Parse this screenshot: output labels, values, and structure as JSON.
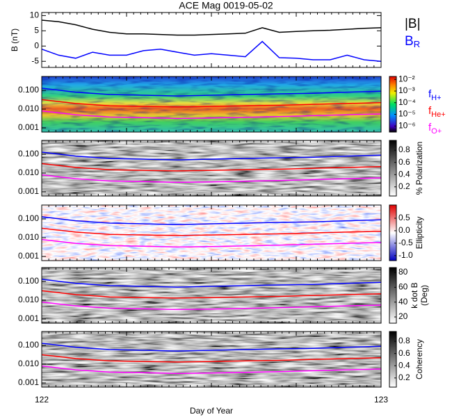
{
  "chart_data": [
    {
      "type": "line",
      "title": "ACE Mag 0019-05-02",
      "y_label": "B (nT)",
      "x": [
        122.0,
        122.05,
        122.1,
        122.15,
        122.2,
        122.25,
        122.3,
        122.35,
        122.4,
        122.45,
        122.5,
        122.55,
        122.6,
        122.65,
        122.7,
        122.75,
        122.8,
        122.85,
        122.9,
        122.95,
        123.0
      ],
      "series": [
        {
          "name": "|B|",
          "color": "#000000",
          "values": [
            8.5,
            8,
            7,
            5.5,
            4.5,
            4,
            4,
            3.8,
            3.6,
            3.6,
            3.8,
            4,
            4.2,
            6,
            4.5,
            4.8,
            5,
            5.2,
            5.5,
            5.8,
            6
          ]
        },
        {
          "name": "B",
          "subscript": "R",
          "color": "#0000ff",
          "values": [
            -1,
            -3,
            -4,
            -2,
            -3,
            -3,
            -1.5,
            -1,
            -2,
            -3,
            -2.5,
            -3,
            -3.5,
            1.5,
            -3.8,
            -4,
            -4.5,
            -4.5,
            -3,
            -4.5,
            -5
          ]
        }
      ],
      "xlim": [
        122,
        123
      ],
      "ylim": [
        -7,
        11
      ],
      "yticks": [
        10,
        5,
        0,
        -5
      ]
    },
    {
      "type": "spectrogram",
      "log_y": true,
      "x": [
        122.0,
        122.1,
        122.2,
        122.3,
        122.4,
        122.5,
        122.6,
        122.7,
        122.8,
        122.9,
        123.0
      ],
      "series": [
        {
          "name": "f",
          "subscript": "H+",
          "color": "#0000ff",
          "values": [
            0.13,
            0.08,
            0.06,
            0.055,
            0.05,
            0.055,
            0.06,
            0.065,
            0.07,
            0.08,
            0.09
          ]
        },
        {
          "name": "f",
          "subscript": "He+",
          "color": "#ff0000",
          "values": [
            0.032,
            0.02,
            0.015,
            0.014,
            0.013,
            0.014,
            0.015,
            0.016,
            0.018,
            0.02,
            0.022
          ]
        },
        {
          "name": "f",
          "subscript": "O+",
          "color": "#ff00ff",
          "values": [
            0.008,
            0.005,
            0.0038,
            0.0035,
            0.0032,
            0.0034,
            0.0037,
            0.004,
            0.0045,
            0.005,
            0.0055
          ]
        }
      ],
      "xlim": [
        122,
        123
      ],
      "ylim": [
        0.0006,
        0.55
      ],
      "yticks": [
        {
          "value": 0.1,
          "label": "0.100"
        },
        {
          "value": 0.01,
          "label": "0.010"
        },
        {
          "value": 0.001,
          "label": "0.001"
        }
      ],
      "colorbar": {
        "colormap": "rainbow",
        "log": true,
        "lim": [
          3e-07,
          0.018
        ],
        "ticks": [
          {
            "value": 0.01,
            "label": "10⁻²"
          },
          {
            "value": 0.001,
            "label": "10⁻³"
          },
          {
            "value": 0.0001,
            "label": "10⁻⁴"
          },
          {
            "value": 1e-05,
            "label": "10⁻⁵"
          },
          {
            "value": 1e-06,
            "label": "10⁻⁶"
          }
        ]
      }
    },
    {
      "type": "spectrogram",
      "log_y": true,
      "x": [
        122.0,
        122.1,
        122.2,
        122.3,
        122.4,
        122.5,
        122.6,
        122.7,
        122.8,
        122.9,
        123.0
      ],
      "series": [
        {
          "color": "#0000ff",
          "values": [
            0.13,
            0.08,
            0.06,
            0.055,
            0.05,
            0.055,
            0.06,
            0.065,
            0.07,
            0.08,
            0.09
          ]
        },
        {
          "color": "#ff0000",
          "values": [
            0.032,
            0.02,
            0.015,
            0.014,
            0.013,
            0.014,
            0.015,
            0.016,
            0.018,
            0.02,
            0.022
          ]
        },
        {
          "color": "#ff00ff",
          "values": [
            0.008,
            0.005,
            0.0038,
            0.0035,
            0.0032,
            0.0034,
            0.0037,
            0.004,
            0.0045,
            0.005,
            0.0055
          ]
        }
      ],
      "xlim": [
        122,
        123
      ],
      "ylim": [
        0.0006,
        0.55
      ],
      "yticks": [
        {
          "value": 0.1,
          "label": "0.100"
        },
        {
          "value": 0.01,
          "label": "0.010"
        },
        {
          "value": 0.001,
          "label": "0.001"
        }
      ],
      "colorbar": {
        "colormap": "gray",
        "label": [
          "% Polarization"
        ],
        "lim": [
          0.05,
          0.96
        ],
        "ticks": [
          0.8,
          0.6,
          0.4,
          0.2
        ]
      }
    },
    {
      "type": "spectrogram",
      "log_y": true,
      "x": [
        122.0,
        122.1,
        122.2,
        122.3,
        122.4,
        122.5,
        122.6,
        122.7,
        122.8,
        122.9,
        123.0
      ],
      "series": [
        {
          "color": "#0000ff",
          "values": [
            0.13,
            0.08,
            0.06,
            0.055,
            0.05,
            0.055,
            0.06,
            0.065,
            0.07,
            0.08,
            0.09
          ]
        },
        {
          "color": "#ff0000",
          "values": [
            0.032,
            0.02,
            0.015,
            0.014,
            0.013,
            0.014,
            0.015,
            0.016,
            0.018,
            0.02,
            0.022
          ]
        },
        {
          "color": "#ff00ff",
          "values": [
            0.008,
            0.005,
            0.0038,
            0.0035,
            0.0032,
            0.0034,
            0.0037,
            0.004,
            0.0045,
            0.005,
            0.0055
          ]
        }
      ],
      "xlim": [
        122,
        123
      ],
      "ylim": [
        0.0006,
        0.55
      ],
      "yticks": [
        {
          "value": 0.1,
          "label": "0.100"
        },
        {
          "value": 0.01,
          "label": "0.010"
        },
        {
          "value": 0.001,
          "label": "0.001"
        }
      ],
      "colorbar": {
        "colormap": "bwr",
        "label": [
          "Ellipticity"
        ],
        "lim": [
          -1.2,
          1.03
        ],
        "ticks": [
          0.5,
          {
            "value": 0,
            "label": "0.0"
          },
          -0.5,
          {
            "value": -1,
            "label": "-1.0"
          }
        ]
      }
    },
    {
      "type": "spectrogram",
      "log_y": true,
      "x": [
        122.0,
        122.1,
        122.2,
        122.3,
        122.4,
        122.5,
        122.6,
        122.7,
        122.8,
        122.9,
        123.0
      ],
      "series": [
        {
          "color": "#0000ff",
          "values": [
            0.13,
            0.08,
            0.06,
            0.055,
            0.05,
            0.055,
            0.06,
            0.065,
            0.07,
            0.08,
            0.09
          ]
        },
        {
          "color": "#ff0000",
          "values": [
            0.032,
            0.02,
            0.015,
            0.014,
            0.013,
            0.014,
            0.015,
            0.016,
            0.018,
            0.02,
            0.022
          ]
        },
        {
          "color": "#ff00ff",
          "values": [
            0.008,
            0.005,
            0.0038,
            0.0035,
            0.0032,
            0.0034,
            0.0037,
            0.004,
            0.0045,
            0.005,
            0.0055
          ]
        }
      ],
      "xlim": [
        122,
        123
      ],
      "ylim": [
        0.0006,
        0.55
      ],
      "yticks": [
        {
          "value": 0.1,
          "label": "0.100"
        },
        {
          "value": 0.01,
          "label": "0.010"
        },
        {
          "value": 0.001,
          "label": "0.001"
        }
      ],
      "colorbar": {
        "colormap": "gray",
        "label": [
          "k dot B",
          "(Deg)"
        ],
        "lim": [
          11.6,
          86.6
        ],
        "ticks": [
          80,
          60,
          40,
          20
        ]
      }
    },
    {
      "type": "spectrogram",
      "log_y": true,
      "x": [
        122.0,
        122.1,
        122.2,
        122.3,
        122.4,
        122.5,
        122.6,
        122.7,
        122.8,
        122.9,
        123.0
      ],
      "series": [
        {
          "color": "#0000ff",
          "values": [
            0.13,
            0.08,
            0.06,
            0.055,
            0.05,
            0.055,
            0.06,
            0.065,
            0.07,
            0.08,
            0.09
          ]
        },
        {
          "color": "#ff0000",
          "values": [
            0.032,
            0.02,
            0.015,
            0.014,
            0.013,
            0.014,
            0.015,
            0.016,
            0.018,
            0.02,
            0.022
          ]
        },
        {
          "color": "#ff00ff",
          "values": [
            0.008,
            0.005,
            0.0038,
            0.0035,
            0.0032,
            0.0034,
            0.0037,
            0.004,
            0.0045,
            0.005,
            0.0055
          ]
        }
      ],
      "xlim": [
        122,
        123
      ],
      "ylim": [
        0.0006,
        0.55
      ],
      "yticks": [
        {
          "value": 0.1,
          "label": "0.100"
        },
        {
          "value": 0.01,
          "label": "0.010"
        },
        {
          "value": 0.001,
          "label": "0.001"
        }
      ],
      "colorbar": {
        "colormap": "gray",
        "label": [
          "Coherency"
        ],
        "lim": [
          0.05,
          0.96
        ],
        "ticks": [
          0.8,
          0.6,
          0.4,
          0.2
        ]
      },
      "xticks": [
        122,
        123
      ],
      "x_label": "Day of Year"
    }
  ]
}
